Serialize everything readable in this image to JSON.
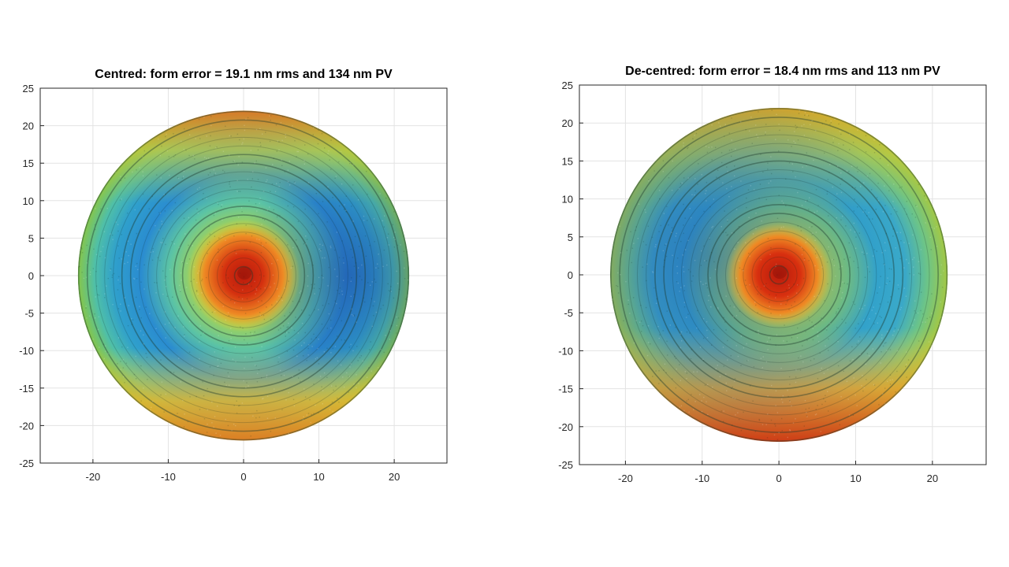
{
  "chart_data": [
    {
      "type": "heatmap",
      "title": "Centred: form error = 19.1 nm rms and 134 nm PV",
      "xlim": [
        -27,
        27
      ],
      "ylim": [
        -25,
        25
      ],
      "xticks": [
        -20,
        -10,
        0,
        10,
        20
      ],
      "yticks": [
        -25,
        -20,
        -15,
        -10,
        -5,
        0,
        5,
        10,
        15,
        20,
        25
      ],
      "xtick_labels": [
        "-20",
        "-10",
        "0",
        "10",
        "20"
      ],
      "ytick_labels": [
        "-25",
        "-20",
        "-15",
        "-10",
        "-5",
        "0",
        "5",
        "10",
        "15",
        "20",
        "25"
      ],
      "grid": true,
      "aperture_radius": 22,
      "colormap": [
        "#1f4fa8",
        "#2a8fd0",
        "#3cc0b8",
        "#8fd34a",
        "#e8d23a",
        "#f08a24",
        "#d4200f"
      ]
    },
    {
      "type": "heatmap",
      "title": "De-centred: form error = 18.4 nm rms and 113 nm PV",
      "xlim": [
        -26,
        27
      ],
      "ylim": [
        -25,
        25
      ],
      "xticks": [
        -20,
        -10,
        0,
        10,
        20
      ],
      "yticks": [
        -25,
        -20,
        -15,
        -10,
        -5,
        0,
        5,
        10,
        15,
        20,
        25
      ],
      "xtick_labels": [
        "-20",
        "-10",
        "0",
        "10",
        "20"
      ],
      "ytick_labels": [
        "-25",
        "-20",
        "-15",
        "-10",
        "-5",
        "0",
        "5",
        "10",
        "15",
        "20",
        "25"
      ],
      "grid": true,
      "aperture_radius": 22,
      "colormap": [
        "#1f4fa8",
        "#2a8fd0",
        "#3cc0b8",
        "#8fd34a",
        "#e8d23a",
        "#f08a24",
        "#d4200f"
      ]
    }
  ]
}
